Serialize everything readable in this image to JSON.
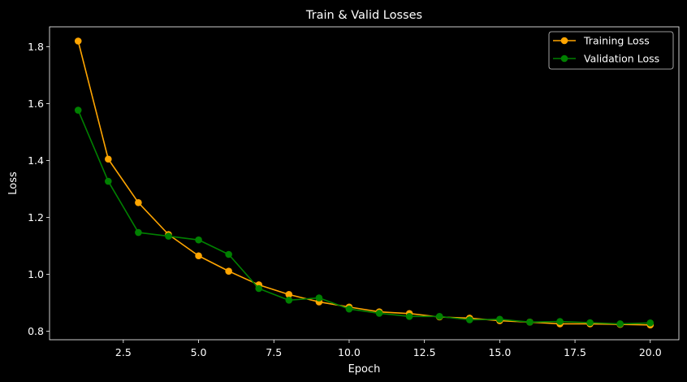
{
  "chart_data": {
    "type": "line",
    "title": "Train & Valid Losses",
    "xlabel": "Epoch",
    "ylabel": "Loss",
    "xlim": [
      0.05,
      20.95
    ],
    "ylim": [
      0.77,
      1.87
    ],
    "xticks": [
      2.5,
      5.0,
      7.5,
      10.0,
      12.5,
      15.0,
      17.5,
      20.0
    ],
    "xtick_labels": [
      "2.5",
      "5.0",
      "7.5",
      "10.0",
      "12.5",
      "15.0",
      "17.5",
      "20.0"
    ],
    "yticks": [
      0.8,
      1.0,
      1.2,
      1.4,
      1.6,
      1.8
    ],
    "ytick_labels": [
      "0.8",
      "1.0",
      "1.2",
      "1.4",
      "1.6",
      "1.8"
    ],
    "grid": false,
    "legend_position": "top-right",
    "x": [
      1,
      2,
      3,
      4,
      5,
      6,
      7,
      8,
      9,
      10,
      11,
      12,
      13,
      14,
      15,
      16,
      17,
      18,
      19,
      20
    ],
    "series": [
      {
        "name": "Training Loss",
        "color": "#ffa500",
        "values": [
          1.82,
          1.405,
          1.252,
          1.14,
          1.065,
          1.011,
          0.963,
          0.929,
          0.903,
          0.885,
          0.868,
          0.862,
          0.85,
          0.846,
          0.837,
          0.832,
          0.826,
          0.826,
          0.824,
          0.822
        ]
      },
      {
        "name": "Validation Loss",
        "color": "#008000",
        "values": [
          1.577,
          1.327,
          1.147,
          1.134,
          1.121,
          1.07,
          0.95,
          0.909,
          0.917,
          0.878,
          0.863,
          0.852,
          0.852,
          0.84,
          0.842,
          0.832,
          0.834,
          0.83,
          0.826,
          0.829
        ]
      }
    ]
  }
}
